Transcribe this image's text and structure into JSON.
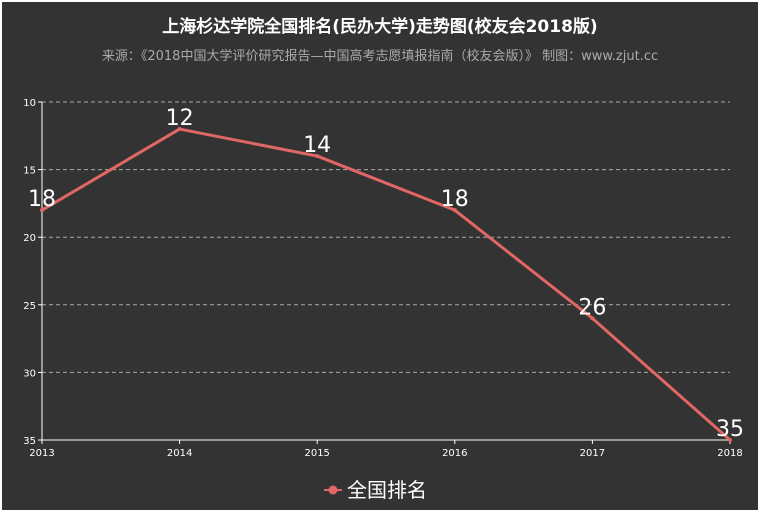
{
  "chart_data": {
    "type": "line",
    "title": "上海杉达学院全国排名(民办大学)走势图(校友会2018版)",
    "subtitle": "来源：《2018中国大学评价研究报告—中国高考志愿填报指南（校友会版）》 制图：www.zjut.cc",
    "categories": [
      "2013",
      "2014",
      "2015",
      "2016",
      "2017",
      "2018"
    ],
    "series": [
      {
        "name": "全国排名",
        "values": [
          18,
          12,
          14,
          18,
          26,
          35
        ],
        "labels": [
          "18",
          "12",
          "14",
          "18",
          "26",
          "35"
        ]
      }
    ],
    "y_ticks": [
      "10",
      "15",
      "20",
      "25",
      "30",
      "35"
    ],
    "ylim": [
      10,
      35
    ],
    "y_inverted": true,
    "grid": true,
    "legend_position": "bottom",
    "colors": {
      "background": "#333333",
      "line": "#e06763",
      "grid": "#aaaaaa",
      "text": "#ffffff"
    }
  }
}
